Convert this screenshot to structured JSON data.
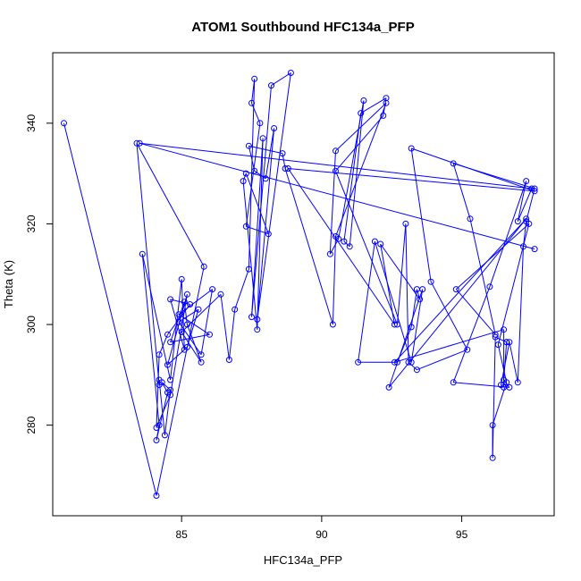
{
  "chart_data": {
    "type": "line",
    "title": "ATOM1 Southbound HFC134a_PFP",
    "xlabel": "HFC134a_PFP",
    "ylabel": "Theta (K)",
    "xlim": [
      80.4,
      98.3
    ],
    "ylim": [
      262,
      354
    ],
    "xticks": [
      85,
      90,
      95
    ],
    "yticks": [
      280,
      300,
      320,
      340
    ],
    "grid": false,
    "legend": "none",
    "series_color": "#0000ff",
    "marker": "open-circle",
    "x": [
      80.8,
      84.1,
      85.8,
      83.4,
      84.2,
      84.2,
      84.4,
      84.6,
      84.3,
      84.5,
      84.1,
      84.2,
      83.6,
      84.6,
      85.0,
      85.1,
      84.6,
      85.3,
      84.5,
      84.2,
      84.1,
      84.6,
      85.2,
      84.5,
      85.2,
      85.6,
      84.9,
      85.7,
      86.1,
      84.9,
      86.0,
      84.6,
      85.1,
      85.2,
      85.7,
      85.0,
      86.4,
      86.7,
      86.9,
      87.4,
      87.6,
      87.5,
      87.8,
      87.3,
      88.1,
      87.3,
      87.2,
      87.7,
      87.9,
      87.5,
      88.2,
      88.9,
      87.7,
      88.3,
      88.0,
      87.6,
      87.4,
      88.6,
      88.7,
      90.4,
      90.5,
      92.3,
      90.5,
      90.3,
      90.6,
      91.5,
      91.0,
      90.8,
      91.4,
      92.3,
      92.2,
      90.5,
      92.7,
      93.0,
      93.1,
      93.4,
      95.2,
      93.9,
      93.2,
      97.6,
      88.8,
      92.6,
      92.1,
      93.5,
      93.4,
      93.2,
      92.7,
      91.3,
      91.9,
      93.2,
      93.6,
      92.4,
      97.3,
      92.6,
      96.5,
      96.5,
      96.4,
      96.7,
      97.0,
      97.2,
      97.3,
      97.6,
      94.7,
      95.3,
      96.2,
      94.8,
      97.4,
      96.3,
      96.6,
      96.1,
      96.1,
      96.2,
      96.6,
      96.6,
      96.5,
      96.7,
      94.7,
      96.0,
      97.3,
      97.0,
      97.5,
      83.5,
      97.6
    ],
    "values": [
      340.0,
      266.0,
      311.5,
      336.0,
      288.0,
      289.0,
      278.0,
      287.0,
      288.5,
      286.5,
      277.0,
      280.0,
      314.0,
      289.0,
      309.0,
      295.0,
      305.0,
      304.0,
      298.0,
      294.0,
      279.5,
      286.0,
      306.0,
      292.0,
      295.5,
      303.0,
      300.5,
      294.0,
      307.0,
      302.0,
      298.0,
      296.5,
      304.5,
      300.0,
      292.5,
      298.5,
      306.0,
      293.0,
      303.0,
      311.0,
      348.8,
      344.0,
      340.0,
      319.5,
      318.0,
      330.0,
      328.5,
      299.0,
      337.0,
      301.5,
      347.5,
      350.0,
      301.0,
      339.0,
      329.0,
      330.5,
      335.5,
      334.0,
      331.0,
      300.0,
      317.5,
      344.0,
      334.5,
      314.0,
      317.0,
      344.5,
      315.5,
      316.5,
      342.0,
      345.0,
      341.5,
      330.5,
      300.0,
      320.0,
      292.5,
      291.0,
      295.0,
      308.5,
      335.0,
      326.5,
      331.0,
      300.0,
      316.0,
      305.0,
      307.0,
      299.5,
      292.5,
      292.5,
      316.5,
      292.5,
      307.0,
      287.5,
      321.0,
      292.5,
      299.0,
      287.5,
      288.0,
      296.5,
      288.5,
      315.5,
      320.5,
      327.0,
      332.0,
      321.0,
      298.0,
      307.0,
      320.0,
      296.0,
      288.5,
      280.0,
      273.5,
      297.5,
      296.5,
      296.5,
      289.0,
      287.5,
      288.5,
      307.5,
      328.5,
      320.5,
      327.0,
      336.0,
      315.0
    ]
  }
}
